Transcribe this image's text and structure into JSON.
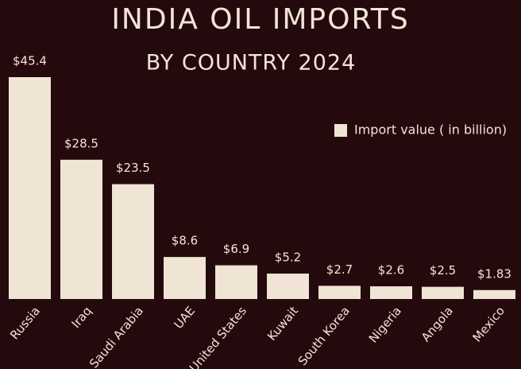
{
  "chart_data": {
    "type": "bar",
    "title": "INDIA OIL IMPORTS",
    "subtitle": "BY COUNTRY 2024",
    "categories": [
      "Russia",
      "Iraq",
      "Saudi Arabia",
      "UAE",
      "United States",
      "Kuwait",
      "South Korea",
      "Nigeria",
      "Angola",
      "Mexico"
    ],
    "series": [
      {
        "name": "Import value  ( in billion)",
        "color": "#f0e4d4",
        "values": [
          45.4,
          28.5,
          23.5,
          8.6,
          6.9,
          5.2,
          2.7,
          2.6,
          2.5,
          1.83
        ],
        "value_labels": [
          "$45.4",
          "$28.5",
          "$23.5",
          "$8.6",
          "$6.9",
          "$5.2",
          "$2.7",
          "$2.6",
          "$2.5",
          "$1.83"
        ]
      }
    ],
    "legend": "upper right"
  }
}
